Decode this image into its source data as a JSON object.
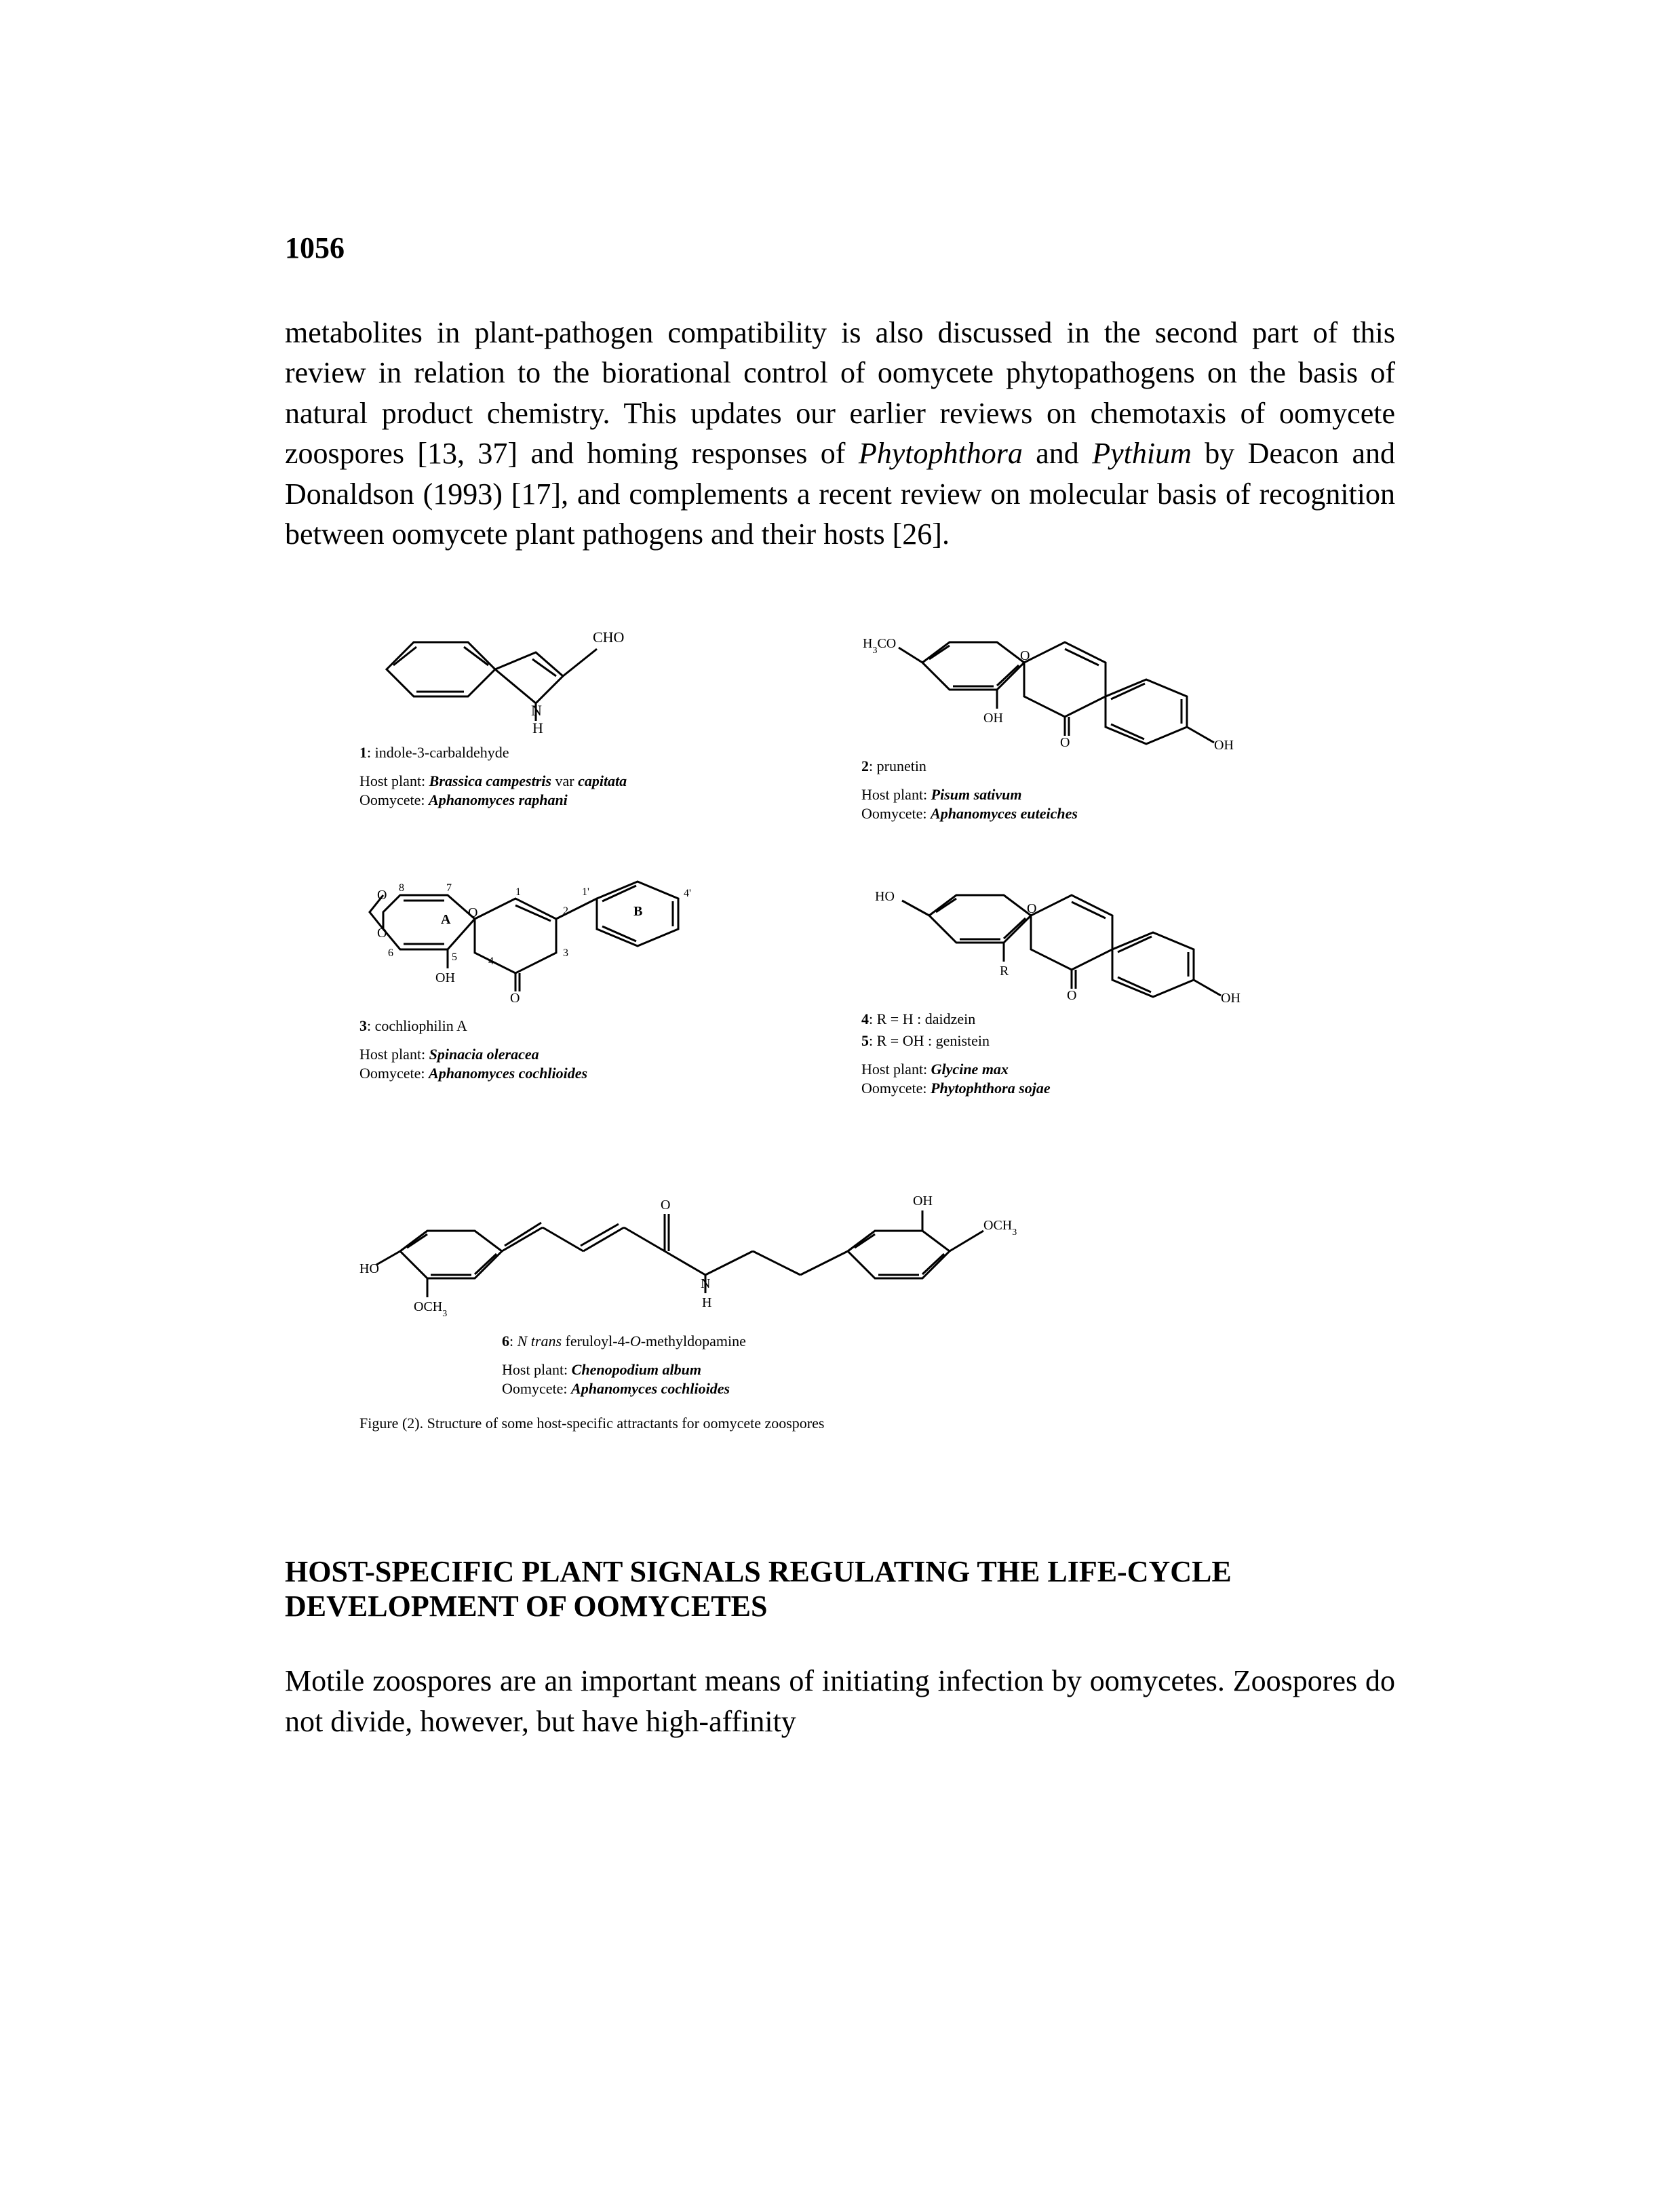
{
  "page_number": "1056",
  "paragraph1_html": "metabolites in plant-pathogen compatibility is also discussed in the second part of this review in relation to the biorational control of oomycete phytopathogens on the basis of natural product chemistry. This updates our earlier reviews on chemotaxis of oomycete zoospores [13, 37] and homing responses of <span class=\"italic\">Phytophthora</span> and <span class=\"italic\">Pythium</span> by Deacon and Donaldson (1993) [17], and complements a recent review on molecular basis of recognition between oomycete plant pathogens and their hosts [26].",
  "compounds": {
    "c1": {
      "label_html": "<span class=\"bold\">1</span>: indole-3-carbaldehyde",
      "host_html": "Host plant: <span class=\"bolditalic\">Brassica campestris</span> var <span class=\"bolditalic\">capitata</span>",
      "oom_html": "Oomycete: <span class=\"bolditalic\">Aphanomyces raphani</span>"
    },
    "c2": {
      "label_html": "<span class=\"bold\">2</span>: prunetin",
      "host_html": "Host plant: <span class=\"bolditalic\">Pisum sativum</span>",
      "oom_html": "Oomycete: <span class=\"bolditalic\">Aphanomyces euteiches</span>"
    },
    "c3": {
      "label_html": "<span class=\"bold\">3</span>: cochliophilin A",
      "host_html": "Host plant: <span class=\"bolditalic\">Spinacia oleracea</span>",
      "oom_html": "Oomycete: <span class=\"bolditalic\">Aphanomyces cochlioides</span>"
    },
    "c45": {
      "label1_html": "<span class=\"bold\">4</span>: R = H : daidzein",
      "label2_html": "<span class=\"bold\">5</span>: R = OH : genistein",
      "host_html": "Host plant: <span class=\"bolditalic\">Glycine max</span>",
      "oom_html": "Oomycete: <span class=\"bolditalic\">Phytophthora sojae</span>"
    },
    "c6": {
      "label_html": "<span class=\"bold\">6</span>: <span class=\"italic\">N trans</span> feruloyl-4-<span class=\"italic\">O</span>-methyldopamine",
      "host_html": "Host plant: <span class=\"bolditalic\">Chenopodium album</span>",
      "oom_html": "Oomycete: <span class=\"bolditalic\">Aphanomyces cochlioides</span>"
    }
  },
  "caption_html": "Figure (2). Structure of some host-specific attractants for oomycete zoospores",
  "section_heading": "HOST-SPECIFIC PLANT SIGNALS REGULATING THE LIFE-CYCLE DEVELOPMENT OF OOMYCETES",
  "paragraph2_html": "Motile zoospores are an important means of initiating infection by oomycetes. Zoospores do not divide, however, but have high-affinity",
  "colors": {
    "text": "#000000",
    "background": "#ffffff",
    "stroke": "#000000"
  }
}
